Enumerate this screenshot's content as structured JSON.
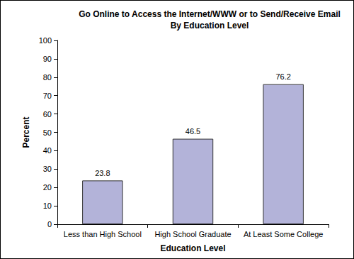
{
  "chart_data": {
    "type": "bar",
    "title": "Go Online to Access the Internet/WWW or to Send/Receive Email",
    "subtitle": "By Education Level",
    "xlabel": "Education Level",
    "ylabel": "Percent",
    "categories": [
      "Less than High School",
      "High School Graduate",
      "At Least Some College"
    ],
    "values": [
      23.8,
      46.5,
      76.2
    ],
    "color": "#b3b3d9",
    "ylim": [
      0,
      100
    ],
    "yticks": [
      0,
      10,
      20,
      30,
      40,
      50,
      60,
      70,
      80,
      90,
      100
    ],
    "grid": false,
    "data_labels": true
  }
}
